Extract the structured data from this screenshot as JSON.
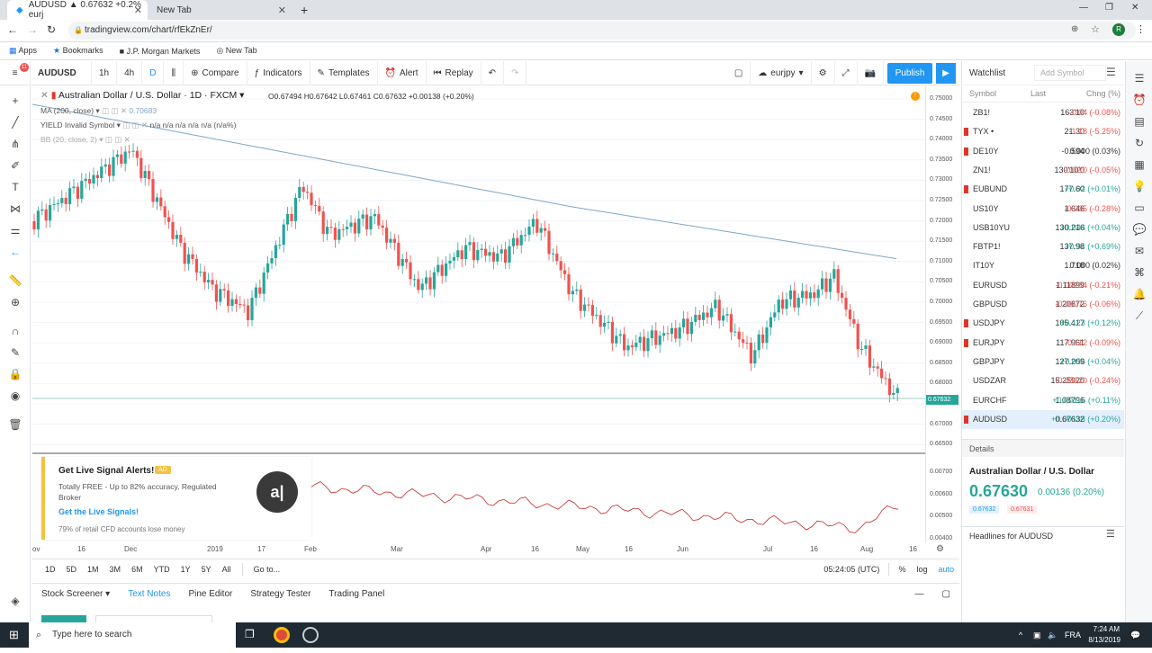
{
  "browser": {
    "tabs": [
      {
        "label": "AUDUSD ▲ 0.67632 +0.2% eurj",
        "close": "✕"
      },
      {
        "label": "New Tab",
        "close": "✕"
      }
    ],
    "new_tab": "+",
    "url": "tradingview.com/chart/rfEkZnEr/",
    "bookmarks": [
      "Apps",
      "Bookmarks",
      "J.P. Morgan Markets",
      "New Tab"
    ],
    "window_controls": [
      "—",
      "❐",
      "✕"
    ]
  },
  "toolbar": {
    "symbol": "AUDUSD",
    "intervals": [
      "1h",
      "4h",
      "D"
    ],
    "compare": "Compare",
    "indicators": "Indicators",
    "templates": "Templates",
    "alert": "Alert",
    "replay": "Replay",
    "layout_name": "eurjpy",
    "publish": "Publish"
  },
  "chart": {
    "title": "Australian Dollar / U.S. Dollar · 1D · FXCM",
    "ohlc": "O0.67494  H0.67642  L0.67461  C0.67632  +0.00138 (+0.20%)",
    "ma_label": "MA (200, close)",
    "ma_value": "0.70683",
    "yield_label": "YIELD Invalid Symbol",
    "yield_values": "n/a  n/a  n/a  n/a    n/a  (n/a%)",
    "bb_label": "BB (20, close, 2)",
    "current_price": "0.67632",
    "price_labels": [
      "0.75000",
      "0.74500",
      "0.74000",
      "0.73500",
      "0.73000",
      "0.72500",
      "0.72000",
      "0.71500",
      "0.71000",
      "0.70500",
      "0.70000",
      "0.69500",
      "0.69000",
      "0.68500",
      "0.68000",
      "0.67500",
      "0.67000",
      "0.66500"
    ],
    "sub_price_labels": [
      "0.00700",
      "0.00600",
      "0.00500",
      "0.00400"
    ],
    "time_labels": [
      "ov",
      "16",
      "Dec",
      "2019",
      "17",
      "Feb",
      "Mar",
      "Apr",
      "16",
      "May",
      "16",
      "Jun",
      "Jul",
      "16",
      "Aug",
      "16"
    ],
    "colors": {
      "up": "#26a69a",
      "down": "#ef5350",
      "ma": "#7fa7c9",
      "sub": "#c62828"
    }
  },
  "ad": {
    "title": "Get Live Signal Alerts!",
    "badge": "AD",
    "body": "Totally FREE - Up to 82% accuracy, Regulated Broker",
    "link": "Get the Live Signals!",
    "disclaimer": "79% of retail CFD accounts lose money",
    "logo": "a|"
  },
  "bottom": {
    "ranges": [
      "1D",
      "5D",
      "1M",
      "3M",
      "6M",
      "YTD",
      "1Y",
      "5Y",
      "All"
    ],
    "goto": "Go to...",
    "clock": "05:24:05 (UTC)",
    "scale_opts": [
      "%",
      "log",
      "auto"
    ],
    "tabs": [
      "Stock Screener",
      "Text Notes",
      "Pine Editor",
      "Strategy Tester",
      "Trading Panel"
    ]
  },
  "watchlist": {
    "title": "Watchlist",
    "add_symbol": "Add Symbol",
    "headers": [
      "Symbol",
      "Last",
      "Chng (%)"
    ],
    "rows": [
      {
        "sym": "ZB1!",
        "last": "163'10",
        "chg": "-0'04  (-0.08%)",
        "dir": "neg",
        "flag": false
      },
      {
        "sym": "TYX •",
        "last": "21.30",
        "chg": "-1.18  (-5.25%)",
        "dir": "neg",
        "flag": true
      },
      {
        "sym": "DE10Y",
        "last": "-0.594",
        "chg": "0.000  (0.03%)",
        "dir": "neu",
        "flag": true
      },
      {
        "sym": "ZN1!",
        "last": "130'10'0",
        "chg": "-0'02'0  (-0.05%)",
        "dir": "neg",
        "flag": false
      },
      {
        "sym": "EUBUND",
        "last": "177.60",
        "chg": "+0.02  (+0.01%)",
        "dir": "pos",
        "flag": true
      },
      {
        "sym": "US10Y",
        "last": "1.646",
        "chg": "-0.005  (-0.28%)",
        "dir": "neg",
        "flag": false
      },
      {
        "sym": "USB10YU",
        "last": "130.216",
        "chg": "+0.048  (+0.04%)",
        "dir": "pos",
        "flag": false
      },
      {
        "sym": "FBTP1!",
        "last": "137.98",
        "chg": "+0.94  (+0.69%)",
        "dir": "pos",
        "flag": false
      },
      {
        "sym": "IT10Y",
        "last": "1.718",
        "chg": "0.000  (0.02%)",
        "dir": "neu",
        "flag": false
      },
      {
        "sym": "EURUSD",
        "last": "1.11899",
        "chg": "-0.00234  (-0.21%)",
        "dir": "neg",
        "flag": false
      },
      {
        "sym": "GBPUSD",
        "last": "1.20672",
        "chg": "-0.00076  (-0.06%)",
        "dir": "neg",
        "flag": false
      },
      {
        "sym": "USDJPY",
        "last": "105.417",
        "chg": "+0.123  (+0.12%)",
        "dir": "pos",
        "flag": true
      },
      {
        "sym": "EURJPY",
        "last": "117.961",
        "chg": "-0.112  (-0.09%)",
        "dir": "neg",
        "flag": true
      },
      {
        "sym": "GBPJPY",
        "last": "127.209",
        "chg": "+0.056  (+0.04%)",
        "dir": "pos",
        "flag": false
      },
      {
        "sym": "USDZAR",
        "last": "15.25920",
        "chg": "-0.03620  (-0.24%)",
        "dir": "neg",
        "flag": false
      },
      {
        "sym": "EURCHF",
        "last": "1.08796",
        "chg": "+0.00116  (+0.11%)",
        "dir": "pos",
        "flag": false
      },
      {
        "sym": "AUDUSD",
        "last": "0.67632",
        "chg": "+0.00138  (+0.20%)",
        "dir": "pos",
        "flag": true
      }
    ],
    "details_label": "Details",
    "detail_name": "Australian Dollar / U.S. Dollar",
    "detail_price": "0.67630",
    "detail_change": "0.00136 (0.20%)",
    "bid": "0.67632",
    "ask": "0.67631",
    "headlines": "Headlines for AUDUSD"
  },
  "taskbar": {
    "search": "Type here to search",
    "lang": "FRA",
    "time": "7:24 AM",
    "date": "8/13/2019"
  }
}
